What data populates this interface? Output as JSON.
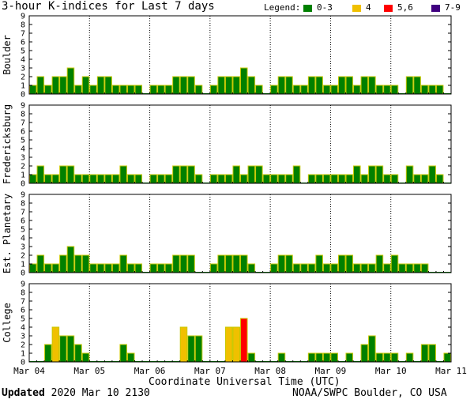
{
  "title": "3-hour K-indices for Last 7 days",
  "legend": {
    "label": "Legend:",
    "items": [
      {
        "label": "0-3",
        "color": "#008000"
      },
      {
        "label": "4",
        "color": "#f0c000"
      },
      {
        "label": "5,6",
        "color": "#ff0000"
      },
      {
        "label": "7-9",
        "color": "#400080"
      }
    ]
  },
  "x_axis_title": "Coordinate Universal Time (UTC)",
  "footer": {
    "updated_label": "Updated",
    "updated_value": "2020 Mar 10 2130",
    "credit": "NOAA/SWPC Boulder, CO USA"
  },
  "chart_data": {
    "type": "bar",
    "x_tick_labels": [
      "Mar 04",
      "Mar 05",
      "Mar 06",
      "Mar 07",
      "Mar 08",
      "Mar 09",
      "Mar 10",
      "Mar 11"
    ],
    "ylim": [
      0,
      9
    ],
    "y_tick_labels": [
      "0",
      "1",
      "2",
      "3",
      "4",
      "5",
      "6",
      "7",
      "8",
      "9"
    ],
    "colors": {
      "0-3": "#008000",
      "4": "#f0c000",
      "5,6": "#ff0000",
      "7-9": "#400080"
    },
    "panels": [
      {
        "name": "Boulder",
        "values": [
          1,
          2,
          1,
          2,
          2,
          3,
          1,
          2,
          1,
          2,
          2,
          1,
          1,
          1,
          1,
          0,
          1,
          1,
          1,
          2,
          2,
          2,
          1,
          0,
          1,
          2,
          2,
          2,
          3,
          2,
          1,
          0,
          1,
          2,
          2,
          1,
          1,
          2,
          2,
          1,
          1,
          2,
          2,
          1,
          2,
          2,
          1,
          1,
          1,
          0,
          2,
          2,
          1,
          1,
          1,
          0
        ]
      },
      {
        "name": "Fredericksburg",
        "values": [
          1,
          2,
          1,
          1,
          2,
          2,
          1,
          1,
          1,
          1,
          1,
          1,
          2,
          1,
          1,
          0,
          1,
          1,
          1,
          2,
          2,
          2,
          1,
          0,
          1,
          1,
          1,
          2,
          1,
          2,
          2,
          1,
          1,
          1,
          1,
          2,
          0,
          1,
          1,
          1,
          1,
          1,
          1,
          2,
          1,
          2,
          2,
          1,
          1,
          0,
          2,
          1,
          1,
          2,
          1,
          0
        ]
      },
      {
        "name": "Est. Planetary",
        "values": [
          1,
          2,
          1,
          1,
          2,
          3,
          2,
          2,
          1,
          1,
          1,
          1,
          2,
          1,
          1,
          0,
          1,
          1,
          1,
          2,
          2,
          2,
          0,
          0,
          1,
          2,
          2,
          2,
          2,
          1,
          0,
          0,
          1,
          2,
          2,
          1,
          1,
          1,
          2,
          1,
          1,
          2,
          2,
          1,
          1,
          1,
          2,
          1,
          2,
          1,
          1,
          1,
          1,
          0,
          0,
          0
        ]
      },
      {
        "name": "College",
        "values": [
          0,
          0,
          2,
          4,
          3,
          3,
          2,
          1,
          0,
          0,
          0,
          0,
          2,
          1,
          0,
          0,
          0,
          0,
          0,
          0,
          4,
          3,
          3,
          0,
          0,
          0,
          4,
          4,
          5,
          1,
          0,
          0,
          0,
          1,
          0,
          0,
          0,
          1,
          1,
          1,
          1,
          0,
          1,
          0,
          2,
          3,
          1,
          1,
          1,
          0,
          1,
          0,
          2,
          2,
          0,
          1
        ]
      }
    ]
  }
}
